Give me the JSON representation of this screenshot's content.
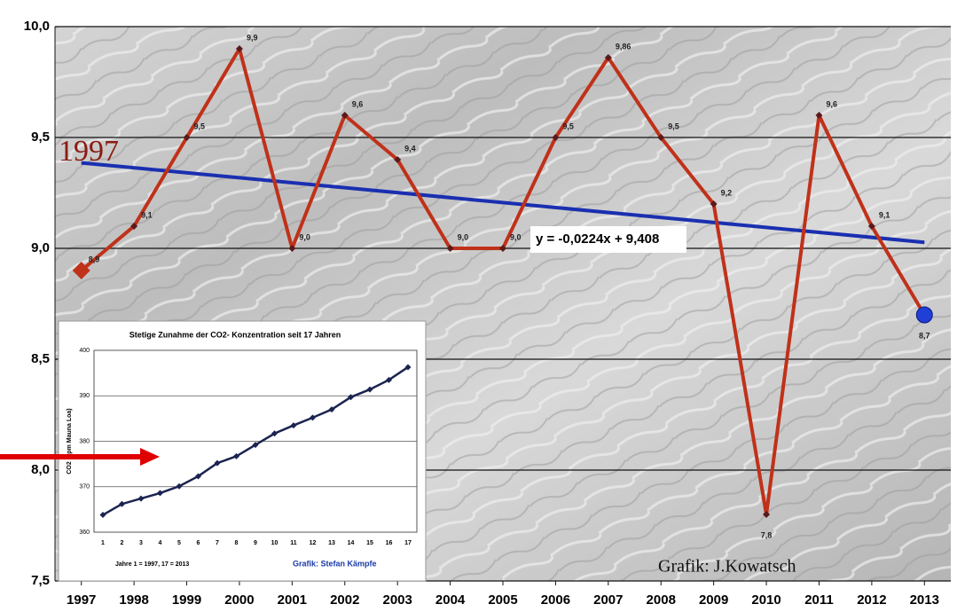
{
  "chart_data": [
    {
      "type": "line",
      "categories": [
        "1997",
        "1998",
        "1999",
        "2000",
        "2001",
        "2002",
        "2003",
        "2004",
        "2005",
        "2006",
        "2007",
        "2008",
        "2009",
        "2010",
        "2011",
        "2012",
        "2013"
      ],
      "series": [
        {
          "color": "#c0311a",
          "marker_color": "#5a1a1a",
          "start_marker_color": "#c0311a",
          "end_marker_color": "#1f3fd6",
          "values": [
            8.9,
            9.1,
            9.5,
            9.9,
            9.0,
            9.6,
            9.4,
            9.0,
            9.0,
            9.5,
            9.86,
            9.5,
            9.2,
            7.8,
            9.6,
            9.1,
            8.7
          ],
          "value_labels": [
            "8,9",
            "9,1",
            "9,5",
            "9,9",
            "9,0",
            "9,6",
            "9,4",
            "9,0",
            "9,0",
            "9,5",
            "9,86",
            "9,5",
            "9,2",
            "7,8",
            "9,6",
            "9,1",
            "8,7"
          ]
        }
      ],
      "trend": {
        "label": "y = -0,0224x + 9,408",
        "color": "#1a2fb0",
        "values": [
          9.3856,
          9.0272
        ]
      },
      "ylim": [
        7.5,
        10.0
      ],
      "yticks": [
        {
          "value": 7.5,
          "label": "7,5"
        },
        {
          "value": 8.0,
          "label": "8,0"
        },
        {
          "value": 8.5,
          "label": "8,5"
        },
        {
          "value": 9.0,
          "label": "9,0"
        },
        {
          "value": 9.5,
          "label": "9,5"
        },
        {
          "value": 10.0,
          "label": "10,0"
        }
      ],
      "grid": true,
      "annotations": [
        "1997",
        "Grafik: J.Kowatsch"
      ]
    },
    {
      "type": "line",
      "title": "Stetige Zunahme der CO2- Konzentration seit 17 Jahren",
      "y_label": "CO2 (ppm Mauna Loa)",
      "x": [
        1,
        2,
        3,
        4,
        5,
        6,
        7,
        8,
        9,
        10,
        11,
        12,
        13,
        14,
        15,
        16,
        17
      ],
      "series": [
        {
          "color": "#1b2450",
          "values": [
            363.8,
            366.2,
            367.4,
            368.6,
            370.1,
            372.3,
            375.2,
            376.7,
            379.2,
            381.7,
            383.5,
            385.2,
            387.0,
            389.7,
            391.4,
            393.5,
            396.3
          ]
        }
      ],
      "ylim": [
        360,
        400
      ],
      "yticks": [
        360,
        370,
        380,
        390,
        400
      ],
      "xticks": [
        1,
        2,
        3,
        4,
        5,
        6,
        7,
        8,
        9,
        10,
        11,
        12,
        13,
        14,
        15,
        16,
        17
      ],
      "grid": true,
      "annotations": [
        "Jahre 1 = 1997, 17 = 2013",
        "Grafik: Stefan Kämpfe"
      ]
    }
  ]
}
